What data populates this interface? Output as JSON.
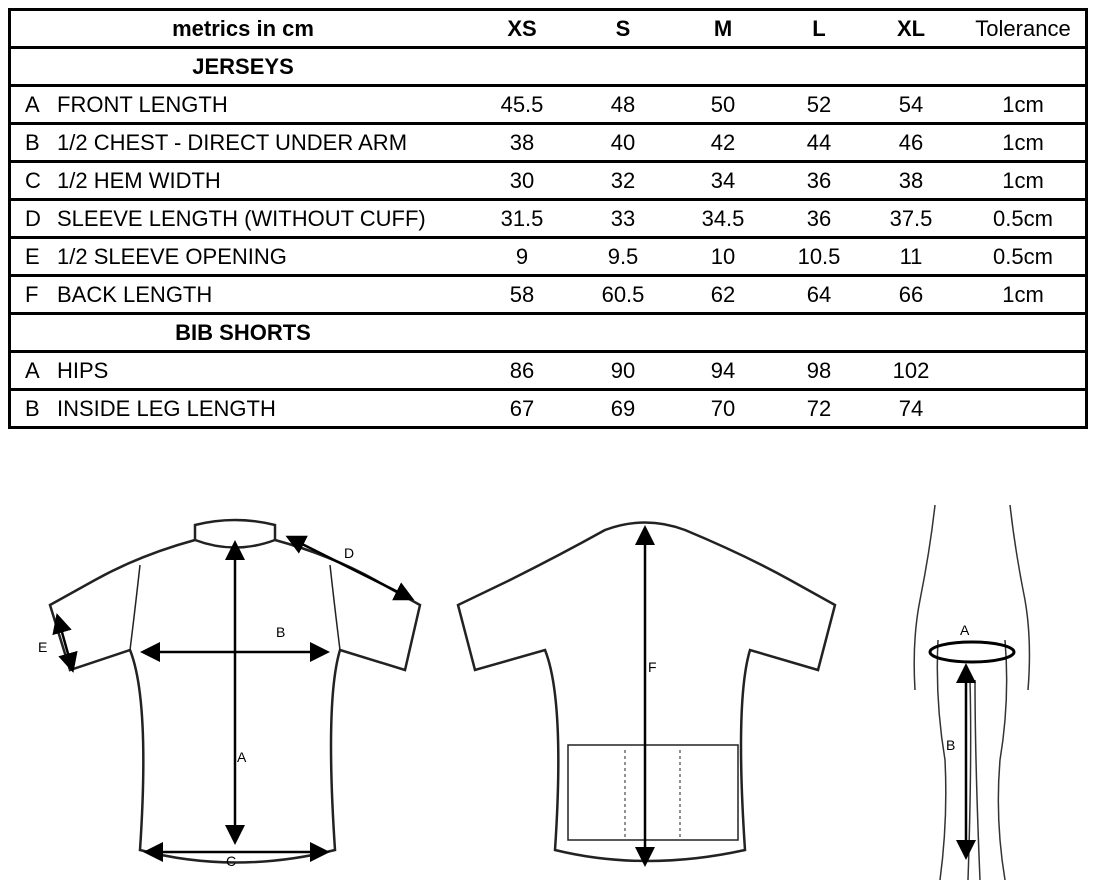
{
  "table": {
    "header": {
      "label": "metrics in cm",
      "sizes": [
        "XS",
        "S",
        "M",
        "L",
        "XL"
      ],
      "tolerance": "Tolerance"
    },
    "sections": [
      {
        "title": "JERSEYS",
        "rows": [
          {
            "letter": "A",
            "name": "FRONT LENGTH",
            "values": [
              "45.5",
              "48",
              "50",
              "52",
              "54"
            ],
            "tolerance": "1cm"
          },
          {
            "letter": "B",
            "name": "1/2 CHEST - DIRECT UNDER ARM",
            "values": [
              "38",
              "40",
              "42",
              "44",
              "46"
            ],
            "tolerance": "1cm"
          },
          {
            "letter": "C",
            "name": "1/2 HEM WIDTH",
            "values": [
              "30",
              "32",
              "34",
              "36",
              "38"
            ],
            "tolerance": "1cm"
          },
          {
            "letter": "D",
            "name": "SLEEVE LENGTH (WITHOUT CUFF)",
            "values": [
              "31.5",
              "33",
              "34.5",
              "36",
              "37.5"
            ],
            "tolerance": "0.5cm"
          },
          {
            "letter": "E",
            "name": "1/2 SLEEVE OPENING",
            "values": [
              "9",
              "9.5",
              "10",
              "10.5",
              "11"
            ],
            "tolerance": "0.5cm"
          },
          {
            "letter": "F",
            "name": "BACK LENGTH",
            "values": [
              "58",
              "60.5",
              "62",
              "64",
              "66"
            ],
            "tolerance": "1cm"
          }
        ]
      },
      {
        "title": "BIB SHORTS",
        "rows": [
          {
            "letter": "A",
            "name": "HIPS",
            "values": [
              "86",
              "90",
              "94",
              "98",
              "102"
            ],
            "tolerance": ""
          },
          {
            "letter": "B",
            "name": "INSIDE LEG LENGTH",
            "values": [
              "67",
              "69",
              "70",
              "72",
              "74"
            ],
            "tolerance": ""
          }
        ]
      }
    ]
  },
  "diagrams": {
    "front_labels": {
      "a": "A",
      "b": "B",
      "c": "C",
      "d": "D",
      "e": "E"
    },
    "back_labels": {
      "f": "F"
    },
    "body_labels": {
      "a": "A",
      "b": "B"
    }
  }
}
